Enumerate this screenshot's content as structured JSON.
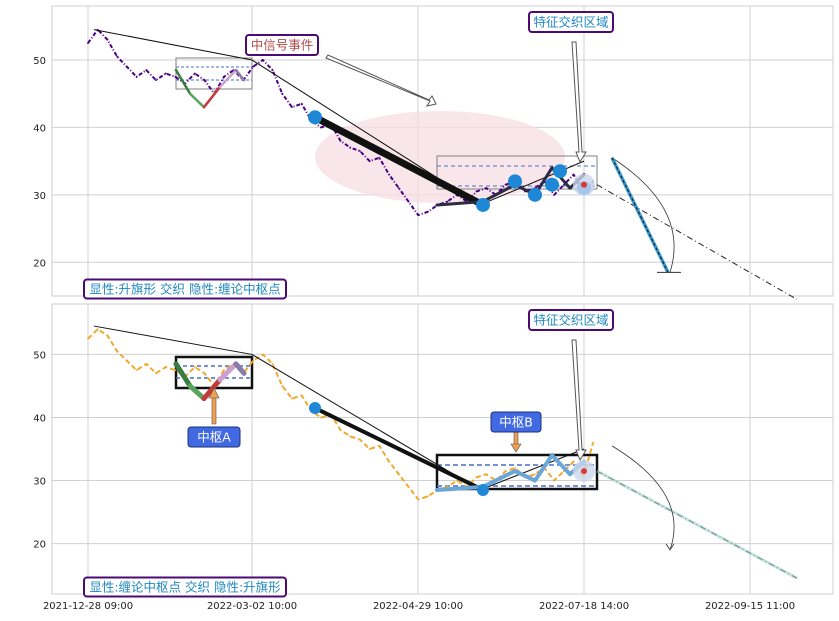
{
  "chart_data": [
    {
      "type": "line",
      "title": "",
      "xlabel": "",
      "ylabel": "",
      "ylim": [
        15,
        58
      ],
      "yticks": [
        20,
        30,
        40,
        50
      ],
      "grid": true,
      "colors": {
        "price": "#4b0082",
        "trend": "#000000",
        "blue_dots": "#1e88d6",
        "ellipse": "#f7dde4",
        "box": "#808080"
      },
      "x": [
        0,
        2,
        4,
        6,
        8,
        10,
        12,
        14,
        16,
        18,
        20,
        22,
        24,
        26,
        28,
        30,
        32,
        34,
        36,
        38,
        40,
        42,
        44,
        46,
        48,
        50,
        52,
        54,
        56,
        58,
        60,
        62,
        64,
        66,
        68,
        70,
        72,
        74,
        76,
        78,
        80,
        82,
        84,
        86,
        88,
        90,
        92,
        94,
        96,
        98,
        100,
        102,
        104
      ],
      "series": [
        {
          "values": [
            52.5,
            54.5,
            53,
            50.5,
            49,
            47.5,
            48.5,
            47,
            48,
            47.5,
            46.5,
            48,
            47,
            45,
            47.5,
            48.5,
            47,
            49,
            50,
            48.5,
            45,
            43,
            43.5,
            41,
            40,
            40.5,
            38,
            37,
            36.5,
            35,
            35.5,
            33,
            31,
            29,
            27,
            27.5,
            28.5,
            29,
            30,
            29,
            30.5,
            31,
            30,
            31.5,
            32,
            30.5,
            31,
            32,
            30,
            31.5,
            33,
            30.5,
            32
          ]
        }
      ],
      "annotations": [
        {
          "text": "中信号事件"
        },
        {
          "text": "特征交织区域"
        }
      ],
      "label": "显性:升旗形 交织 隐性:缠论中枢点"
    },
    {
      "type": "line",
      "title": "",
      "xlabel": "",
      "ylabel": "",
      "ylim": [
        12,
        58
      ],
      "yticks": [
        20,
        30,
        40,
        50
      ],
      "grid": true,
      "colors": {
        "price": "#f0a92e",
        "trend": "#000000",
        "zhongshu": "#4169e1",
        "box": "#111111"
      },
      "x": [
        0,
        2,
        4,
        6,
        8,
        10,
        12,
        14,
        16,
        18,
        20,
        22,
        24,
        26,
        28,
        30,
        32,
        34,
        36,
        38,
        40,
        42,
        44,
        46,
        48,
        50,
        52,
        54,
        56,
        58,
        60,
        62,
        64,
        66,
        68,
        70,
        72,
        74,
        76,
        78,
        80,
        82,
        84,
        86,
        88,
        90,
        92,
        94,
        96,
        98,
        100,
        102,
        104
      ],
      "series": [
        {
          "values": [
            52.5,
            54,
            53,
            50.5,
            49,
            47.5,
            48.5,
            47,
            48,
            47.5,
            46.5,
            48,
            47,
            45,
            47.5,
            48.5,
            47,
            49,
            50,
            48.5,
            45,
            43,
            43.5,
            41,
            40,
            40.5,
            38,
            37,
            36.5,
            35,
            35.5,
            33,
            31,
            29,
            27,
            27.5,
            28.5,
            29,
            30,
            29,
            30.5,
            31,
            30,
            31.5,
            32,
            30.5,
            31,
            32,
            30,
            31.5,
            33,
            30.5,
            36
          ]
        }
      ],
      "annotations": [
        {
          "text": "特征交织区域"
        },
        {
          "text": "中枢A"
        },
        {
          "text": "中枢B"
        }
      ],
      "label": "显性:缠论中枢点 交织 隐性:升旗形"
    }
  ],
  "xaxis": {
    "tick_labels": [
      "2021-12-28 09:00",
      "2022-03-02 10:00",
      "2022-04-29 10:00",
      "2022-07-18 14:00",
      "2022-09-15 11:00"
    ]
  }
}
